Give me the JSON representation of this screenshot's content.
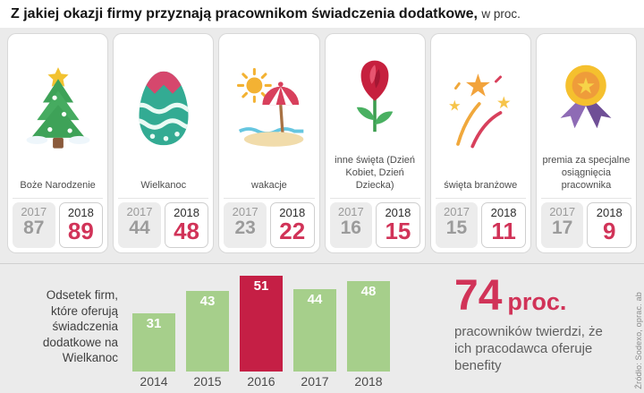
{
  "header": {
    "title_bold": "Z jakiej okazji firmy przyznają pracownikom świadczenia dodatkowe,",
    "title_suffix": "w proc."
  },
  "source": "Źródło: Sodexo, oprac. ab",
  "colors": {
    "accent_red": "#d13358",
    "bar_highlight_red": "#c51f45",
    "bar_green": "#a6cf8b",
    "gray_value": "#9b9b9b"
  },
  "cards": [
    {
      "icon": "christmas-tree-icon",
      "label": "Boże Narodzenie"
    },
    {
      "icon": "easter-egg-icon",
      "label": "Wielkanoc"
    },
    {
      "icon": "beach-umbrella-icon",
      "label": "wakacje"
    },
    {
      "icon": "rose-icon",
      "label": "inne święta (Dzień Kobiet, Dzień Dziecka)"
    },
    {
      "icon": "fireworks-icon",
      "label": "święta branżowe"
    },
    {
      "icon": "medal-icon",
      "label": "premia za specjalne osiągnięcia pracownika"
    }
  ],
  "stat_highlight": {
    "number": "74",
    "unit": "proc.",
    "description": "pracowników twierdzi, że ich pracodawca oferuje benefity"
  },
  "chart_data": [
    {
      "type": "table",
      "title": "Z jakiej okazji firmy przyznają pracownikom świadczenia dodatkowe (w proc.)",
      "categories": [
        "Boże Narodzenie",
        "Wielkanoc",
        "wakacje",
        "inne święta (Dzień Kobiet, Dzień Dziecka)",
        "święta branżowe",
        "premia za specjalne osiągnięcia pracownika"
      ],
      "series": [
        {
          "name": "2017",
          "values": [
            87,
            44,
            23,
            16,
            15,
            17
          ]
        },
        {
          "name": "2018",
          "values": [
            89,
            48,
            22,
            15,
            11,
            9
          ]
        }
      ]
    },
    {
      "type": "bar",
      "title": "Odsetek firm, które oferują świadczenia dodatkowe na Wielkanoc",
      "categories": [
        "2014",
        "2015",
        "2016",
        "2017",
        "2018"
      ],
      "values": [
        31,
        43,
        51,
        44,
        48
      ],
      "highlight_category": "2016",
      "bar_color": "#a6cf8b",
      "highlight_color": "#c51f45",
      "ylim": [
        0,
        55
      ],
      "grid": false,
      "value_labels": "inside-top",
      "legend": "none"
    }
  ]
}
